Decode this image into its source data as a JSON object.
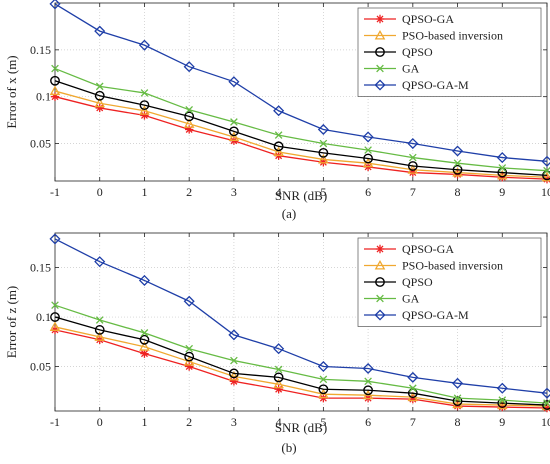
{
  "chart_data": [
    {
      "type": "line",
      "caption": "(a)",
      "xlabel": "SNR (dB)",
      "ylabel": "Error of x (m)",
      "x": [
        -1,
        0,
        1,
        2,
        3,
        4,
        5,
        6,
        7,
        8,
        9,
        10
      ],
      "xlim": [
        -1,
        10
      ],
      "ylim": [
        0.01,
        0.2
      ],
      "yticks": [
        0.05,
        0.1,
        0.15
      ],
      "ytick_labels": [
        "0.05",
        "0.1",
        "0.15"
      ],
      "grid": "dotted",
      "legend": "top-right",
      "series": [
        {
          "name": "QPSO-GA",
          "color": "#ee2222",
          "marker": "star",
          "values": [
            0.1,
            0.088,
            0.08,
            0.065,
            0.053,
            0.037,
            0.03,
            0.025,
            0.019,
            0.017,
            0.014,
            0.012
          ]
        },
        {
          "name": "PSO-based inversion",
          "color": "#f0a830",
          "marker": "triangle",
          "values": [
            0.106,
            0.093,
            0.085,
            0.071,
            0.057,
            0.041,
            0.033,
            0.029,
            0.022,
            0.019,
            0.016,
            0.014
          ]
        },
        {
          "name": "QPSO",
          "color": "#000000",
          "marker": "circle",
          "values": [
            0.117,
            0.101,
            0.091,
            0.079,
            0.063,
            0.047,
            0.04,
            0.034,
            0.026,
            0.022,
            0.019,
            0.016
          ]
        },
        {
          "name": "GA",
          "color": "#66bb44",
          "marker": "x",
          "values": [
            0.13,
            0.111,
            0.104,
            0.086,
            0.073,
            0.059,
            0.05,
            0.043,
            0.035,
            0.029,
            0.024,
            0.021
          ]
        },
        {
          "name": "QPSO-GA-M",
          "color": "#1f3fa8",
          "marker": "diamond",
          "values": [
            0.199,
            0.17,
            0.155,
            0.132,
            0.116,
            0.085,
            0.065,
            0.057,
            0.05,
            0.042,
            0.035,
            0.031
          ]
        }
      ]
    },
    {
      "type": "line",
      "caption": "(b)",
      "xlabel": "SNR (dB)",
      "ylabel": "Error of z (m)",
      "x": [
        -1,
        0,
        1,
        2,
        3,
        4,
        5,
        6,
        7,
        8,
        9,
        10
      ],
      "xlim": [
        -1,
        10
      ],
      "ylim": [
        0.005,
        0.185
      ],
      "yticks": [
        0.05,
        0.1,
        0.15
      ],
      "ytick_labels": [
        "0.05",
        "0.1",
        "0.15"
      ],
      "grid": "dotted",
      "legend": "top-right",
      "series": [
        {
          "name": "QPSO-GA",
          "color": "#ee2222",
          "marker": "star",
          "values": [
            0.087,
            0.077,
            0.063,
            0.05,
            0.035,
            0.027,
            0.018,
            0.018,
            0.017,
            0.01,
            0.009,
            0.008
          ]
        },
        {
          "name": "PSO-based inversion",
          "color": "#f0a830",
          "marker": "triangle",
          "values": [
            0.09,
            0.08,
            0.07,
            0.055,
            0.04,
            0.032,
            0.022,
            0.021,
            0.019,
            0.012,
            0.011,
            0.01
          ]
        },
        {
          "name": "QPSO",
          "color": "#000000",
          "marker": "circle",
          "values": [
            0.1,
            0.087,
            0.077,
            0.06,
            0.043,
            0.039,
            0.027,
            0.026,
            0.023,
            0.015,
            0.013,
            0.011
          ]
        },
        {
          "name": "GA",
          "color": "#66bb44",
          "marker": "x",
          "values": [
            0.112,
            0.097,
            0.084,
            0.068,
            0.056,
            0.047,
            0.037,
            0.035,
            0.028,
            0.018,
            0.016,
            0.013
          ]
        },
        {
          "name": "QPSO-GA-M",
          "color": "#1f3fa8",
          "marker": "diamond",
          "values": [
            0.179,
            0.156,
            0.137,
            0.116,
            0.082,
            0.068,
            0.05,
            0.048,
            0.039,
            0.033,
            0.028,
            0.023
          ]
        }
      ]
    }
  ]
}
